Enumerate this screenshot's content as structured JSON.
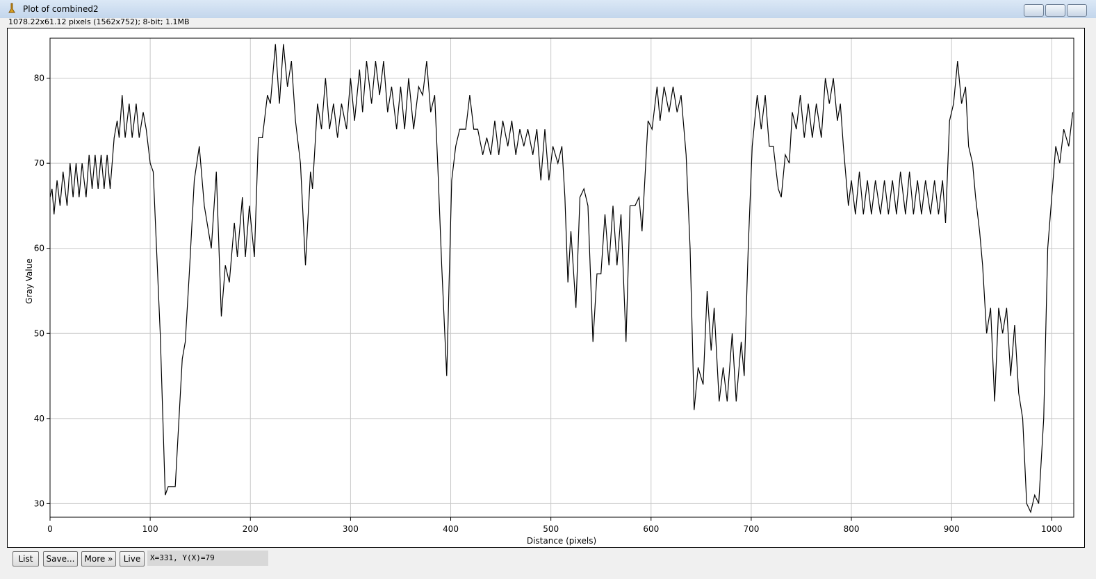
{
  "window": {
    "title": "Plot of combined2",
    "info": "1078.22x61.12 pixels (1562x752); 8-bit; 1.1MB",
    "buttons": [
      "List",
      "Save...",
      "More »",
      "Live"
    ],
    "status": "X=331, Y(X)=79"
  },
  "chart_data": {
    "type": "line",
    "xlabel": "Distance (pixels)",
    "ylabel": "Gray Value",
    "x": [
      0,
      2,
      4,
      7,
      10,
      13,
      17,
      20,
      23,
      26,
      29,
      32,
      36,
      39,
      42,
      45,
      48,
      51,
      54,
      57,
      60,
      64,
      67,
      69,
      72,
      75,
      79,
      82,
      86,
      89,
      93,
      96,
      100,
      103,
      110,
      115,
      118,
      125,
      132,
      135,
      139,
      144,
      149,
      154,
      161,
      166,
      171,
      175,
      179,
      184,
      187,
      192,
      195,
      199,
      204,
      208,
      212,
      217,
      220,
      225,
      229,
      233,
      237,
      241,
      245,
      250,
      255,
      260,
      262,
      267,
      271,
      275,
      279,
      283,
      287,
      291,
      296,
      300,
      304,
      309,
      312,
      316,
      321,
      325,
      329,
      333,
      337,
      341,
      346,
      350,
      354,
      358,
      363,
      368,
      372,
      376,
      380,
      384,
      387,
      391,
      396,
      401,
      405,
      409,
      415,
      419,
      423,
      427,
      432,
      436,
      440,
      444,
      448,
      452,
      457,
      461,
      465,
      469,
      473,
      477,
      482,
      486,
      490,
      494,
      498,
      502,
      507,
      511,
      514,
      517,
      520,
      525,
      529,
      533,
      537,
      542,
      546,
      550,
      554,
      558,
      562,
      566,
      570,
      575,
      579,
      584,
      588,
      591,
      597,
      601,
      606,
      609,
      613,
      618,
      622,
      626,
      630,
      635,
      639,
      643,
      647,
      652,
      656,
      660,
      663,
      668,
      672,
      676,
      681,
      685,
      690,
      693,
      697,
      701,
      706,
      710,
      714,
      718,
      722,
      727,
      730,
      734,
      738,
      741,
      745,
      749,
      753,
      757,
      761,
      765,
      770,
      774,
      778,
      782,
      786,
      789,
      792,
      797,
      800,
      804,
      808,
      812,
      816,
      820,
      824,
      829,
      833,
      837,
      841,
      845,
      849,
      854,
      858,
      862,
      866,
      870,
      874,
      879,
      883,
      887,
      891,
      894,
      898,
      902,
      906,
      910,
      914,
      917,
      921,
      924,
      928,
      931,
      935,
      939,
      943,
      947,
      951,
      955,
      959,
      963,
      967,
      971,
      975,
      979,
      983,
      987,
      992,
      996,
      1000,
      1004,
      1008,
      1012,
      1017,
      1021
    ],
    "series": [
      {
        "color": "#000000",
        "values": [
          66,
          67,
          64,
          68,
          65,
          69,
          65,
          70,
          66,
          70,
          66,
          70,
          66,
          71,
          67,
          71,
          67,
          71,
          67,
          71,
          67,
          73,
          75,
          73,
          78,
          73,
          77,
          73,
          77,
          73,
          76,
          74,
          70,
          69,
          50,
          31,
          32,
          32,
          47,
          49,
          57,
          68,
          72,
          65,
          60,
          69,
          52,
          58,
          56,
          63,
          59,
          66,
          59,
          65,
          59,
          73,
          73,
          78,
          77,
          84,
          77,
          84,
          79,
          82,
          75,
          70,
          58,
          69,
          67,
          77,
          74,
          80,
          74,
          77,
          73,
          77,
          74,
          80,
          75,
          81,
          76,
          82,
          77,
          82,
          78,
          82,
          76,
          79,
          74,
          79,
          74,
          80,
          74,
          79,
          78,
          82,
          76,
          78,
          70,
          58,
          45,
          68,
          72,
          74,
          74,
          78,
          74,
          74,
          71,
          73,
          71,
          75,
          71,
          75,
          72,
          75,
          71,
          74,
          72,
          74,
          71,
          74,
          68,
          74,
          68,
          72,
          70,
          72,
          66,
          56,
          62,
          53,
          66,
          67,
          65,
          49,
          57,
          57,
          64,
          58,
          65,
          58,
          64,
          49,
          65,
          65,
          66,
          62,
          75,
          74,
          79,
          75,
          79,
          76,
          79,
          76,
          78,
          71,
          60,
          41,
          46,
          44,
          55,
          48,
          53,
          42,
          46,
          42,
          50,
          42,
          49,
          45,
          60,
          72,
          78,
          74,
          78,
          72,
          72,
          67,
          66,
          71,
          70,
          76,
          74,
          78,
          73,
          77,
          73,
          77,
          73,
          80,
          77,
          80,
          75,
          77,
          72,
          65,
          68,
          64,
          69,
          64,
          68,
          64,
          68,
          64,
          68,
          64,
          68,
          64,
          69,
          64,
          69,
          64,
          68,
          64,
          68,
          64,
          68,
          64,
          68,
          63,
          75,
          77,
          82,
          77,
          79,
          72,
          70,
          66,
          62,
          58,
          50,
          53,
          42,
          53,
          50,
          53,
          45,
          51,
          43,
          40,
          30,
          29,
          31,
          30,
          40,
          60,
          66,
          72,
          70,
          74,
          72,
          76
        ]
      }
    ],
    "xlim": [
      0,
      1022
    ],
    "ylim": [
      28.4,
      84.7
    ],
    "xticks": [
      0,
      100,
      200,
      300,
      400,
      500,
      600,
      700,
      800,
      900,
      1000
    ],
    "yticks": [
      30,
      40,
      50,
      60,
      70,
      80
    ],
    "grid": true
  }
}
